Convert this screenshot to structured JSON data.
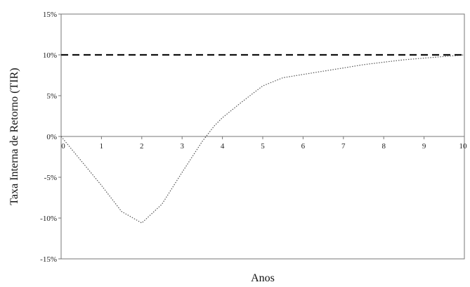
{
  "chart_data": {
    "type": "line",
    "title": "",
    "xlabel": "Anos",
    "ylabel": "Taxa Interna de Retorno (TIR)",
    "xlim": [
      0,
      10
    ],
    "ylim": [
      -15,
      15
    ],
    "x_ticks": [
      0,
      1,
      2,
      3,
      4,
      5,
      6,
      7,
      8,
      9,
      10
    ],
    "y_ticks": [
      -15,
      -10,
      -5,
      0,
      5,
      10,
      15
    ],
    "y_tick_labels": [
      "-15%",
      "-10%",
      "-5%",
      "0%",
      "5%",
      "10%",
      "15%"
    ],
    "grid": false,
    "series": [
      {
        "style": "dotted",
        "color": "#555555",
        "x": [
          0,
          0.5,
          1,
          1.5,
          2,
          2.5,
          3,
          3.5,
          3.8,
          4,
          4.5,
          5,
          5.5,
          6,
          6.5,
          7,
          7.5,
          8,
          8.5,
          9,
          9.5,
          10
        ],
        "y": [
          0,
          -3.0,
          -6.0,
          -9.2,
          -10.6,
          -8.3,
          -4.4,
          -0.6,
          1.3,
          2.3,
          4.3,
          6.2,
          7.2,
          7.6,
          8.0,
          8.4,
          8.8,
          9.1,
          9.4,
          9.6,
          9.8,
          10.0
        ]
      },
      {
        "style": "dashed",
        "color": "#111111",
        "x": [
          0,
          10
        ],
        "y": [
          10,
          10
        ]
      }
    ]
  }
}
